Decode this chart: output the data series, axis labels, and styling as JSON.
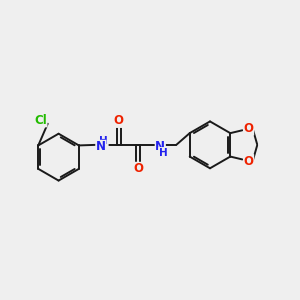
{
  "bg": "#efefef",
  "bond_color": "#1a1a1a",
  "Cl_color": "#22bb00",
  "N_color": "#2222ee",
  "O_color": "#ee2200",
  "lw": 1.4,
  "figsize": [
    3.0,
    3.0
  ],
  "dpi": 100,
  "xlim": [
    0.0,
    10.5
  ],
  "ylim": [
    3.2,
    7.8
  ]
}
